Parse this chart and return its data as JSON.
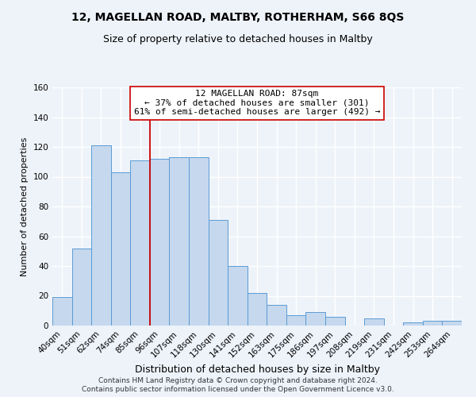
{
  "title": "12, MAGELLAN ROAD, MALTBY, ROTHERHAM, S66 8QS",
  "subtitle": "Size of property relative to detached houses in Maltby",
  "xlabel": "Distribution of detached houses by size in Maltby",
  "ylabel": "Number of detached properties",
  "bar_color": "#c5d8ed",
  "bar_edge_color": "#5b9bd5",
  "categories": [
    "40sqm",
    "51sqm",
    "62sqm",
    "74sqm",
    "85sqm",
    "96sqm",
    "107sqm",
    "118sqm",
    "130sqm",
    "141sqm",
    "152sqm",
    "163sqm",
    "175sqm",
    "186sqm",
    "197sqm",
    "208sqm",
    "219sqm",
    "231sqm",
    "242sqm",
    "253sqm",
    "264sqm"
  ],
  "values": [
    19,
    52,
    121,
    103,
    111,
    112,
    113,
    113,
    71,
    40,
    22,
    14,
    7,
    9,
    6,
    0,
    5,
    0,
    2,
    3,
    3
  ],
  "ylim": [
    0,
    160
  ],
  "yticks": [
    0,
    20,
    40,
    60,
    80,
    100,
    120,
    140,
    160
  ],
  "annotation_text": "12 MAGELLAN ROAD: 87sqm\n← 37% of detached houses are smaller (301)\n61% of semi-detached houses are larger (492) →",
  "footer1": "Contains HM Land Registry data © Crown copyright and database right 2024.",
  "footer2": "Contains public sector information licensed under the Open Government Licence v3.0.",
  "bg_color": "#eef3fa",
  "grid_color": "#ffffff",
  "title_fontsize": 10,
  "subtitle_fontsize": 9,
  "xlabel_fontsize": 9,
  "ylabel_fontsize": 8,
  "tick_fontsize": 7.5,
  "annotation_fontsize": 8,
  "footer_fontsize": 6.5
}
